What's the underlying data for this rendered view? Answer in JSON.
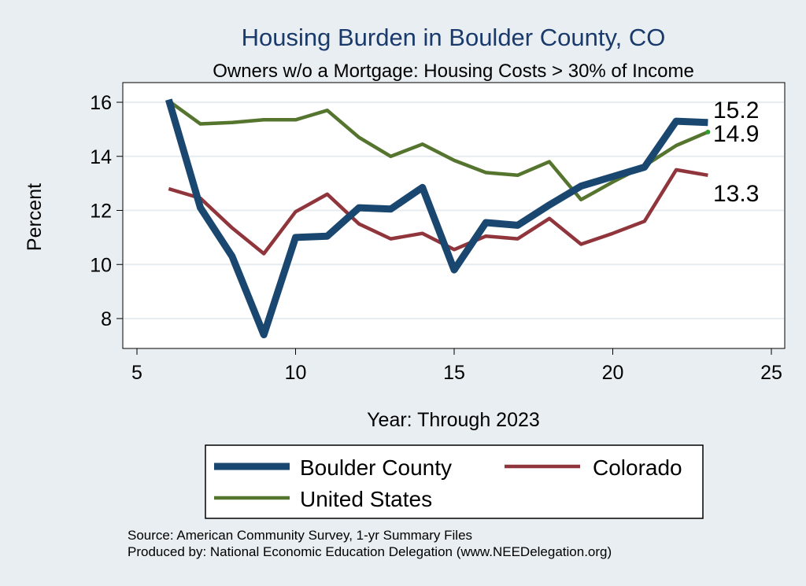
{
  "chart_data": {
    "type": "line",
    "title": "Housing Burden in Boulder County, CO",
    "subtitle": "Owners w/o a Mortgage: Housing Costs > 30% of Income",
    "xlabel": "Year: Through 2023",
    "ylabel": "Percent",
    "xlim": [
      5,
      25
    ],
    "ylim": [
      7,
      16.5
    ],
    "xticks": [
      5,
      10,
      15,
      20,
      25
    ],
    "yticks": [
      8,
      10,
      12,
      14,
      16
    ],
    "grid": true,
    "x": [
      6,
      7,
      8,
      9,
      10,
      11,
      12,
      13,
      14,
      15,
      16,
      17,
      18,
      19,
      20,
      21,
      22,
      23
    ],
    "series": [
      {
        "name": "Boulder County",
        "color": "#1a476f",
        "values": [
          16.1,
          12.1,
          10.3,
          7.4,
          11.0,
          11.05,
          12.1,
          12.05,
          12.85,
          9.8,
          11.55,
          11.45,
          12.2,
          12.9,
          13.25,
          13.6,
          15.3,
          15.25
        ],
        "end_label": "15.2"
      },
      {
        "name": "Colorado",
        "color": "#90353b",
        "values": [
          12.8,
          12.45,
          11.35,
          10.4,
          11.95,
          12.6,
          11.5,
          10.95,
          11.15,
          10.55,
          11.05,
          10.95,
          11.7,
          10.75,
          11.15,
          11.6,
          13.5,
          13.3
        ],
        "end_label": "13.3"
      },
      {
        "name": "United States",
        "color": "#55752f",
        "values": [
          16.05,
          15.2,
          15.25,
          15.35,
          15.35,
          15.7,
          14.7,
          14.0,
          14.45,
          13.85,
          13.4,
          13.3,
          13.8,
          12.4,
          13.05,
          13.65,
          14.4,
          14.9
        ],
        "end_label": "14.9"
      }
    ],
    "legend_position": "bottom",
    "source_lines": [
      "Source: American Community Survey, 1-yr Summary Files",
      "Produced by: National Economic Education Delegation (www.NEEDelegation.org)"
    ]
  }
}
